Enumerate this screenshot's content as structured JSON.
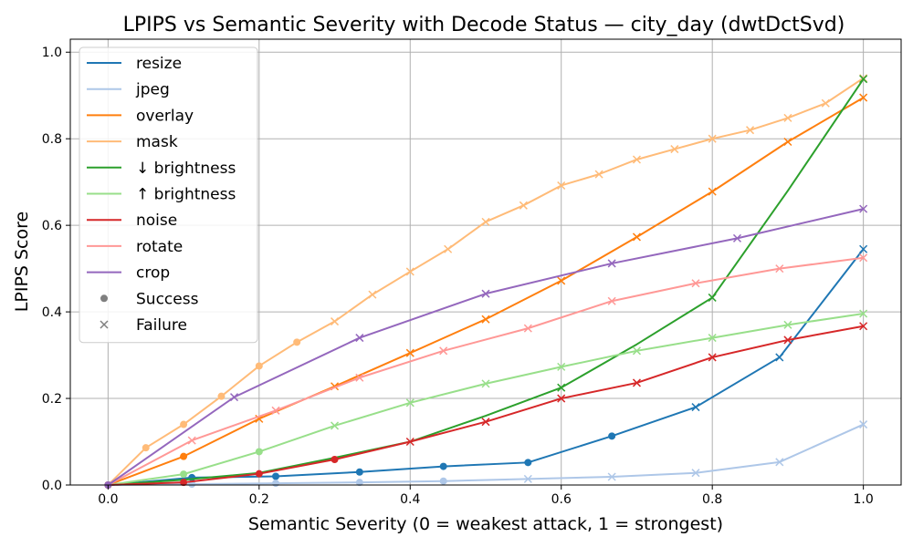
{
  "chart_data": {
    "type": "line",
    "title": "LPIPS vs Semantic Severity with Decode Status — city_day (dwtDctSvd)",
    "xlabel": "Semantic Severity (0 = weakest attack, 1 = strongest)",
    "ylabel": "LPIPS Score",
    "xlim": [
      -0.05,
      1.05
    ],
    "ylim": [
      0.0,
      1.03
    ],
    "xticks": [
      0.0,
      0.2,
      0.4,
      0.6,
      0.8,
      1.0
    ],
    "xtick_labels": [
      "0.0",
      "0.2",
      "0.4",
      "0.6",
      "0.8",
      "1.0"
    ],
    "yticks": [
      0.0,
      0.2,
      0.4,
      0.6,
      0.8,
      1.0
    ],
    "ytick_labels": [
      "0.0",
      "0.2",
      "0.4",
      "0.6",
      "0.8",
      "1.0"
    ],
    "grid": true,
    "legend_position": "upper-left",
    "status_legend": [
      {
        "label": "Success",
        "marker": "circle",
        "color": "#7f7f7f"
      },
      {
        "label": "Failure",
        "marker": "x",
        "color": "#7f7f7f"
      }
    ],
    "series": [
      {
        "name": "resize",
        "color": "#1f77b4",
        "x": [
          0.0,
          0.111,
          0.222,
          0.333,
          0.444,
          0.556,
          0.667,
          0.778,
          0.889,
          1.0
        ],
        "y": [
          0.0,
          0.017,
          0.02,
          0.03,
          0.043,
          0.052,
          0.113,
          0.18,
          0.295,
          0.545
        ],
        "status": [
          "success",
          "success",
          "success",
          "success",
          "success",
          "success",
          "success",
          "failure",
          "failure",
          "failure"
        ]
      },
      {
        "name": "jpeg",
        "color": "#aec7e8",
        "x": [
          0.0,
          0.111,
          0.222,
          0.333,
          0.444,
          0.556,
          0.667,
          0.778,
          0.889,
          1.0
        ],
        "y": [
          0.0,
          0.002,
          0.004,
          0.006,
          0.009,
          0.014,
          0.019,
          0.028,
          0.053,
          0.14
        ],
        "status": [
          "success",
          "success",
          "success",
          "success",
          "success",
          "failure",
          "failure",
          "failure",
          "failure",
          "failure"
        ]
      },
      {
        "name": "overlay",
        "color": "#ff7f0e",
        "x": [
          0.0,
          0.1,
          0.2,
          0.3,
          0.4,
          0.5,
          0.6,
          0.7,
          0.8,
          0.9,
          1.0
        ],
        "y": [
          0.0,
          0.066,
          0.153,
          0.228,
          0.305,
          0.383,
          0.472,
          0.573,
          0.678,
          0.793,
          0.895
        ],
        "status": [
          "success",
          "success",
          "failure",
          "failure",
          "failure",
          "failure",
          "failure",
          "failure",
          "failure",
          "failure",
          "failure"
        ]
      },
      {
        "name": "mask",
        "color": "#ffbb78",
        "x": [
          0.0,
          0.05,
          0.1,
          0.15,
          0.2,
          0.25,
          0.3,
          0.35,
          0.4,
          0.45,
          0.5,
          0.55,
          0.6,
          0.65,
          0.7,
          0.75,
          0.8,
          0.85,
          0.9,
          0.95,
          1.0
        ],
        "y": [
          0.0,
          0.086,
          0.14,
          0.205,
          0.275,
          0.33,
          0.378,
          0.44,
          0.493,
          0.545,
          0.608,
          0.646,
          0.692,
          0.718,
          0.752,
          0.776,
          0.8,
          0.82,
          0.848,
          0.882,
          0.94
        ],
        "status": [
          "success",
          "success",
          "success",
          "success",
          "success",
          "success",
          "failure",
          "failure",
          "failure",
          "failure",
          "failure",
          "failure",
          "failure",
          "failure",
          "failure",
          "failure",
          "failure",
          "failure",
          "failure",
          "failure",
          "failure"
        ]
      },
      {
        "name": "↓ brightness",
        "color": "#2ca02c",
        "x": [
          0.0,
          0.1,
          0.2,
          0.3,
          0.4,
          0.5,
          0.6,
          0.7,
          0.8,
          0.9,
          1.0
        ],
        "y": [
          0.0,
          0.012,
          0.028,
          0.063,
          0.1,
          0.16,
          0.225,
          0.325,
          0.433,
          0.68,
          0.938
        ],
        "status": [
          "success",
          "success",
          "success",
          "success",
          "failure",
          "failure",
          "failure",
          "failure",
          "failure",
          "failure",
          "failure"
        ],
        "show_marker": [
          true,
          false,
          false,
          false,
          false,
          false,
          true,
          false,
          true,
          false,
          true
        ]
      },
      {
        "name": "↑ brightness",
        "color": "#98df8a",
        "x": [
          0.0,
          0.1,
          0.2,
          0.3,
          0.4,
          0.5,
          0.6,
          0.7,
          0.8,
          0.9,
          1.0
        ],
        "y": [
          0.0,
          0.025,
          0.077,
          0.137,
          0.19,
          0.234,
          0.273,
          0.31,
          0.34,
          0.37,
          0.396
        ],
        "status": [
          "success",
          "success",
          "success",
          "failure",
          "failure",
          "failure",
          "failure",
          "failure",
          "failure",
          "failure",
          "failure"
        ]
      },
      {
        "name": "noise",
        "color": "#d62728",
        "x": [
          0.0,
          0.1,
          0.2,
          0.3,
          0.4,
          0.5,
          0.6,
          0.7,
          0.8,
          0.9,
          1.0
        ],
        "y": [
          0.0,
          0.006,
          0.026,
          0.059,
          0.1,
          0.146,
          0.2,
          0.236,
          0.295,
          0.335,
          0.367
        ],
        "status": [
          "success",
          "success",
          "success",
          "success",
          "failure",
          "failure",
          "failure",
          "failure",
          "failure",
          "failure",
          "failure"
        ]
      },
      {
        "name": "rotate",
        "color": "#ff9896",
        "x": [
          0.0,
          0.111,
          0.222,
          0.333,
          0.444,
          0.556,
          0.667,
          0.778,
          0.889,
          1.0
        ],
        "y": [
          0.0,
          0.103,
          0.172,
          0.248,
          0.31,
          0.362,
          0.425,
          0.466,
          0.5,
          0.525
        ],
        "status": [
          "success",
          "failure",
          "failure",
          "failure",
          "failure",
          "failure",
          "failure",
          "failure",
          "failure",
          "failure"
        ]
      },
      {
        "name": "crop",
        "color": "#9467bd",
        "x": [
          0.0,
          0.167,
          0.333,
          0.5,
          0.667,
          0.833,
          1.0
        ],
        "y": [
          0.0,
          0.203,
          0.34,
          0.442,
          0.512,
          0.57,
          0.638
        ],
        "status": [
          "success",
          "failure",
          "failure",
          "failure",
          "failure",
          "failure",
          "failure"
        ]
      }
    ]
  }
}
